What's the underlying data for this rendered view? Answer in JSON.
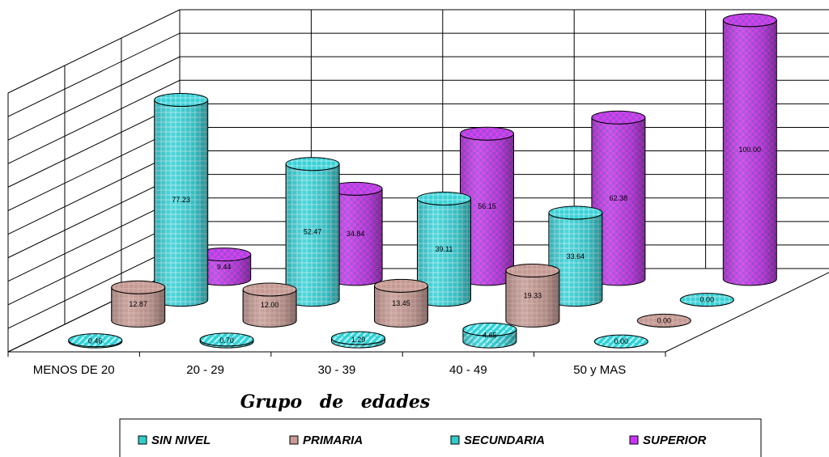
{
  "chart_data": {
    "type": "bar",
    "subtype": "3d-cylinder",
    "xlabel": "Grupo de edades",
    "categories": [
      "MENOS DE 20",
      "20 - 29",
      "30 - 39",
      "40 - 49",
      "50 y MAS"
    ],
    "ylim": [
      0,
      100
    ],
    "grid": true,
    "legend_position": "bottom",
    "series": [
      {
        "name": "SIN NIVEL",
        "color": "#33CCCC",
        "values": [
          0.46,
          0.7,
          1.29,
          4.65,
          0.0
        ]
      },
      {
        "name": "PRIMARIA",
        "color": "#CC9999",
        "values": [
          12.87,
          12.0,
          13.45,
          19.33,
          0.0
        ]
      },
      {
        "name": "SECUNDARIA",
        "color": "#33CCCC",
        "values": [
          77.23,
          52.47,
          39.11,
          33.64,
          0.0
        ]
      },
      {
        "name": "SUPERIOR",
        "color": "#CC33FF",
        "values": [
          9.44,
          34.84,
          56.15,
          62.38,
          100.0
        ]
      }
    ],
    "value_labels": [
      [
        "0.46",
        "0.70",
        "1.29",
        "4.65",
        "0.00"
      ],
      [
        "12.87",
        "12.00",
        "13.45",
        "19.33",
        "0.00"
      ],
      [
        "77.23",
        "52.47",
        "39.11",
        "33.64",
        "0.00"
      ],
      [
        "9.44",
        "34.84",
        "56.15",
        "62.38",
        "100.00"
      ]
    ]
  }
}
